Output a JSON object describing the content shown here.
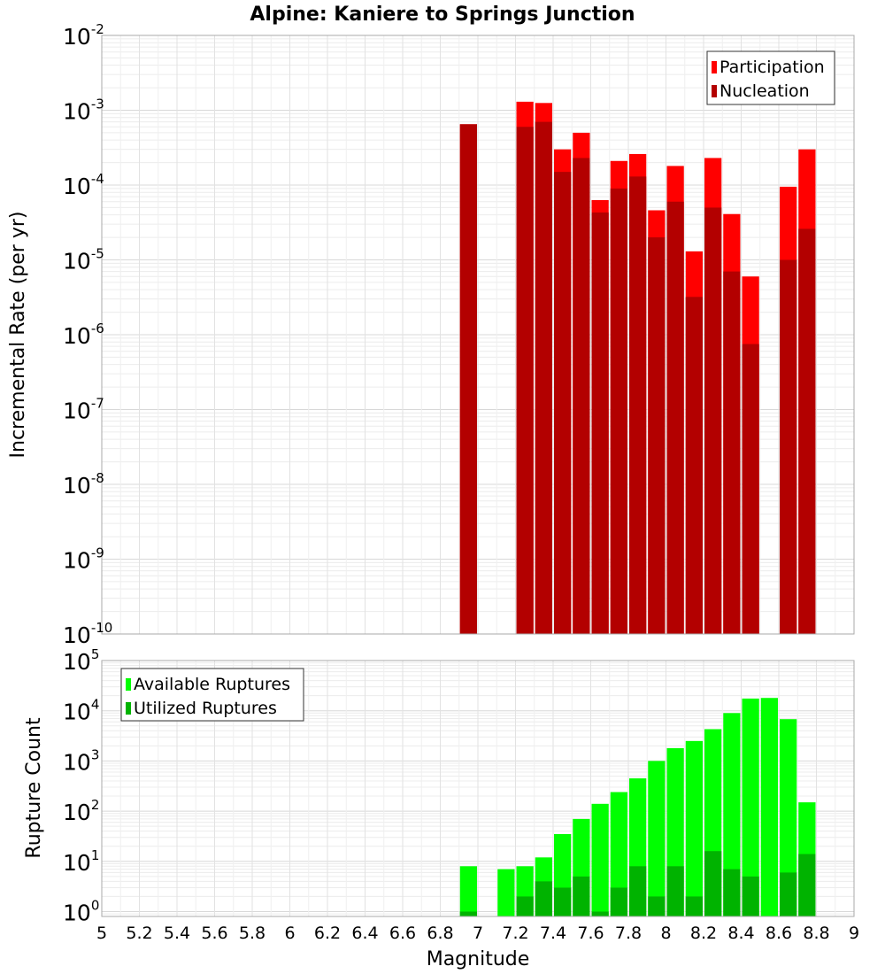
{
  "chart_data": [
    {
      "type": "bar",
      "title": "Alpine: Kaniere to Springs Junction",
      "xlabel": "",
      "ylabel": "Incremental Rate (per yr)",
      "y_scale": "log",
      "ylim": [
        1e-10,
        0.01
      ],
      "xlim": [
        5,
        9
      ],
      "grid": true,
      "legend_position": "top-right",
      "x": [
        6.95,
        7.25,
        7.35,
        7.45,
        7.55,
        7.65,
        7.75,
        7.85,
        7.95,
        8.05,
        8.15,
        8.25,
        8.35,
        8.45,
        8.65,
        8.75
      ],
      "series": [
        {
          "name": "Participation",
          "color": "#ff0000",
          "values": [
            0.00065,
            0.0013,
            0.00125,
            0.0003,
            0.0005,
            6.3e-05,
            0.00021,
            0.00026,
            4.6e-05,
            0.00018,
            1.3e-05,
            0.00023,
            4.1e-05,
            6e-06,
            9.5e-05,
            0.0003
          ]
        },
        {
          "name": "Nucleation",
          "color": "#b30000",
          "values": [
            0.00065,
            0.0006,
            0.0007,
            0.00015,
            0.00023,
            4.3e-05,
            9e-05,
            0.00013,
            2e-05,
            6e-05,
            3.2e-06,
            5e-05,
            7e-06,
            7.5e-07,
            1e-05,
            2.6e-05
          ]
        }
      ]
    },
    {
      "type": "bar",
      "title": "",
      "xlabel": "Magnitude",
      "ylabel": "Rupture Count",
      "y_scale": "log",
      "ylim": [
        0.8,
        100000
      ],
      "xlim": [
        5,
        9
      ],
      "grid": true,
      "legend_position": "top-left",
      "x": [
        6.95,
        7.15,
        7.25,
        7.35,
        7.45,
        7.55,
        7.65,
        7.75,
        7.85,
        7.95,
        8.05,
        8.15,
        8.25,
        8.35,
        8.45,
        8.55,
        8.65,
        8.75
      ],
      "series": [
        {
          "name": "Available Ruptures",
          "color": "#00ff00",
          "values": [
            8,
            7,
            8,
            12,
            35,
            70,
            140,
            240,
            450,
            1000,
            1800,
            2500,
            4300,
            9000,
            17500,
            18000,
            6800,
            150
          ]
        },
        {
          "name": "Utilized Ruptures",
          "color": "#00b300",
          "values": [
            1,
            0,
            2,
            4,
            3,
            5,
            1,
            3,
            8,
            2,
            8,
            2,
            16,
            7,
            5,
            0,
            6,
            14
          ]
        }
      ]
    }
  ],
  "x_ticks": [
    "5",
    "5.2",
    "5.4",
    "5.6",
    "5.8",
    "6",
    "6.2",
    "6.4",
    "6.6",
    "6.8",
    "7",
    "7.2",
    "7.4",
    "7.6",
    "7.8",
    "8",
    "8.2",
    "8.4",
    "8.6",
    "8.8",
    "9"
  ],
  "top_y_ticks": [
    {
      "base": "10",
      "exp": "-2"
    },
    {
      "base": "10",
      "exp": "-3"
    },
    {
      "base": "10",
      "exp": "-4"
    },
    {
      "base": "10",
      "exp": "-5"
    },
    {
      "base": "10",
      "exp": "-6"
    },
    {
      "base": "10",
      "exp": "-7"
    },
    {
      "base": "10",
      "exp": "-8"
    },
    {
      "base": "10",
      "exp": "-9"
    },
    {
      "base": "10",
      "exp": "-10"
    }
  ],
  "bottom_y_ticks": [
    {
      "base": "10",
      "exp": "5"
    },
    {
      "base": "10",
      "exp": "4"
    },
    {
      "base": "10",
      "exp": "3"
    },
    {
      "base": "10",
      "exp": "2"
    },
    {
      "base": "10",
      "exp": "1"
    },
    {
      "base": "10",
      "exp": "0"
    }
  ]
}
